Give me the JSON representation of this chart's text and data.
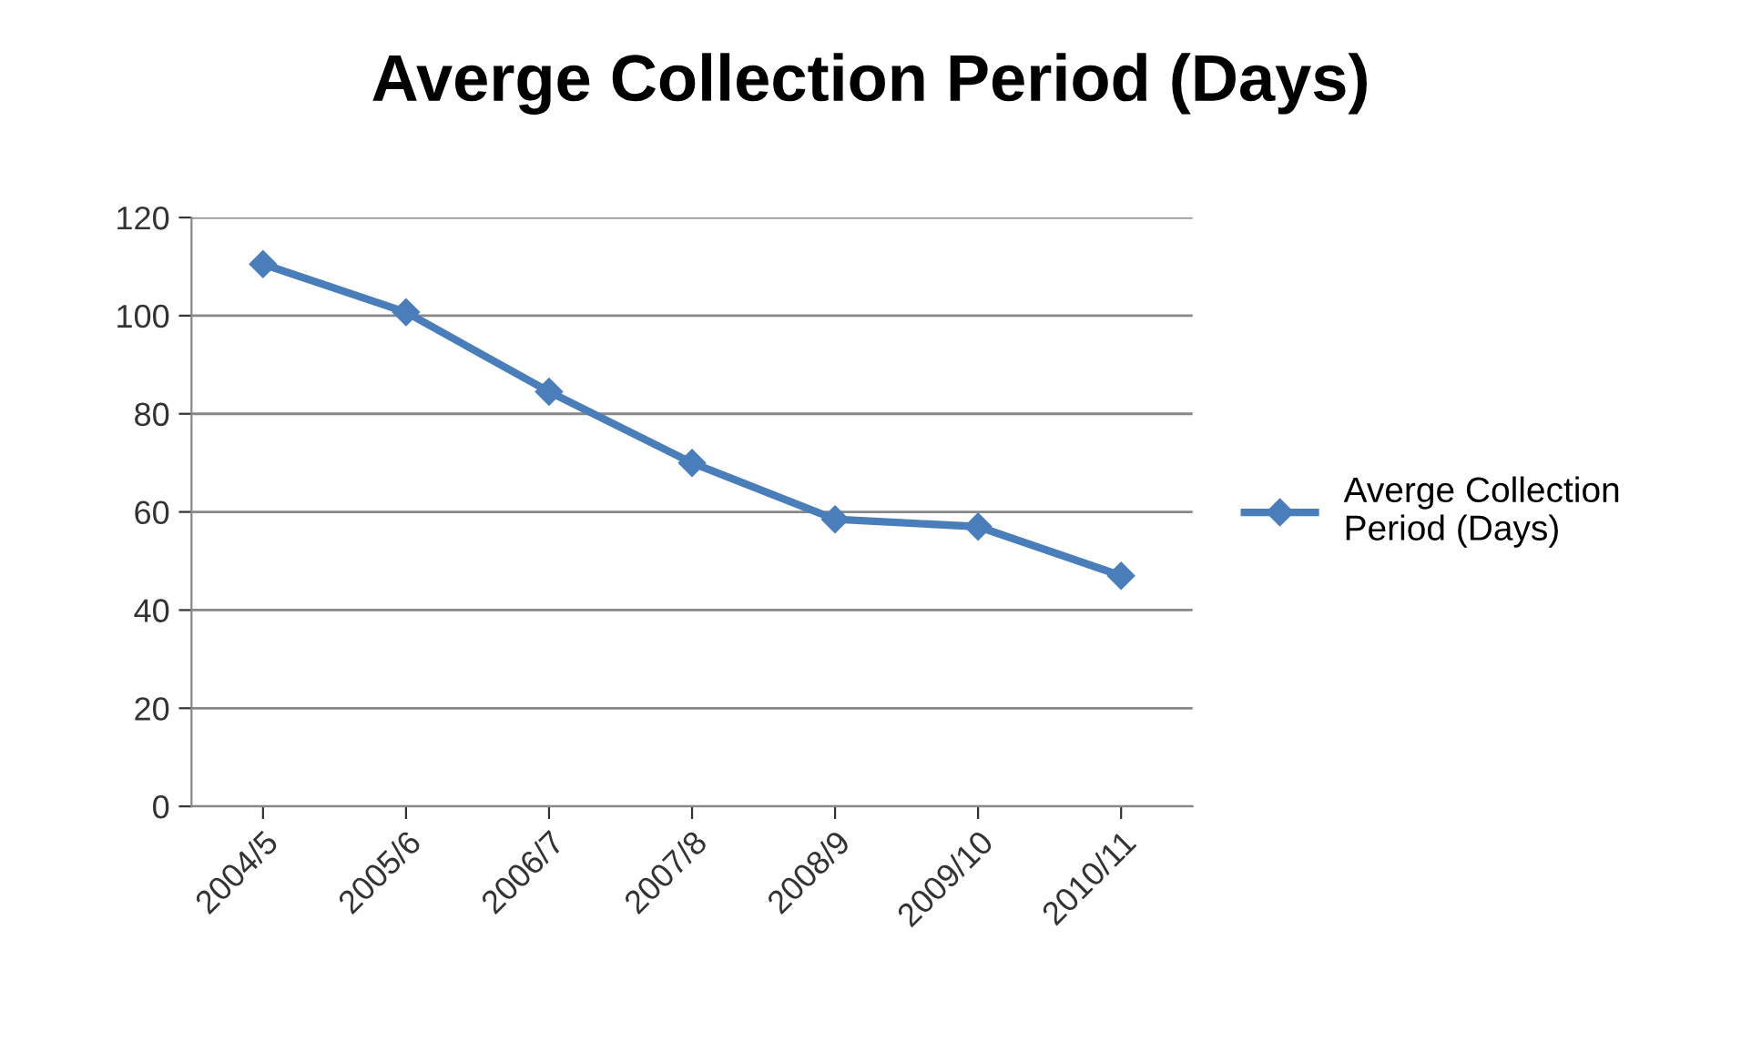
{
  "chart_data": {
    "type": "line",
    "title": "Averge Collection Period (Days)",
    "categories": [
      "2004/5",
      "2005/6",
      "2006/7",
      "2007/8",
      "2008/9",
      "2009/10",
      "2010/11"
    ],
    "series": [
      {
        "name": "Averge Collection\nPeriod (Days)",
        "color": "#4a7ebb",
        "values": [
          110.5,
          100.7,
          84.5,
          70,
          58.5,
          57,
          47
        ]
      }
    ],
    "ylim": [
      0,
      120
    ],
    "yticks": [
      0,
      20,
      40,
      60,
      80,
      100,
      120
    ],
    "grid": "y",
    "legend": "right",
    "marker": "diamond",
    "line_style": "solid"
  }
}
